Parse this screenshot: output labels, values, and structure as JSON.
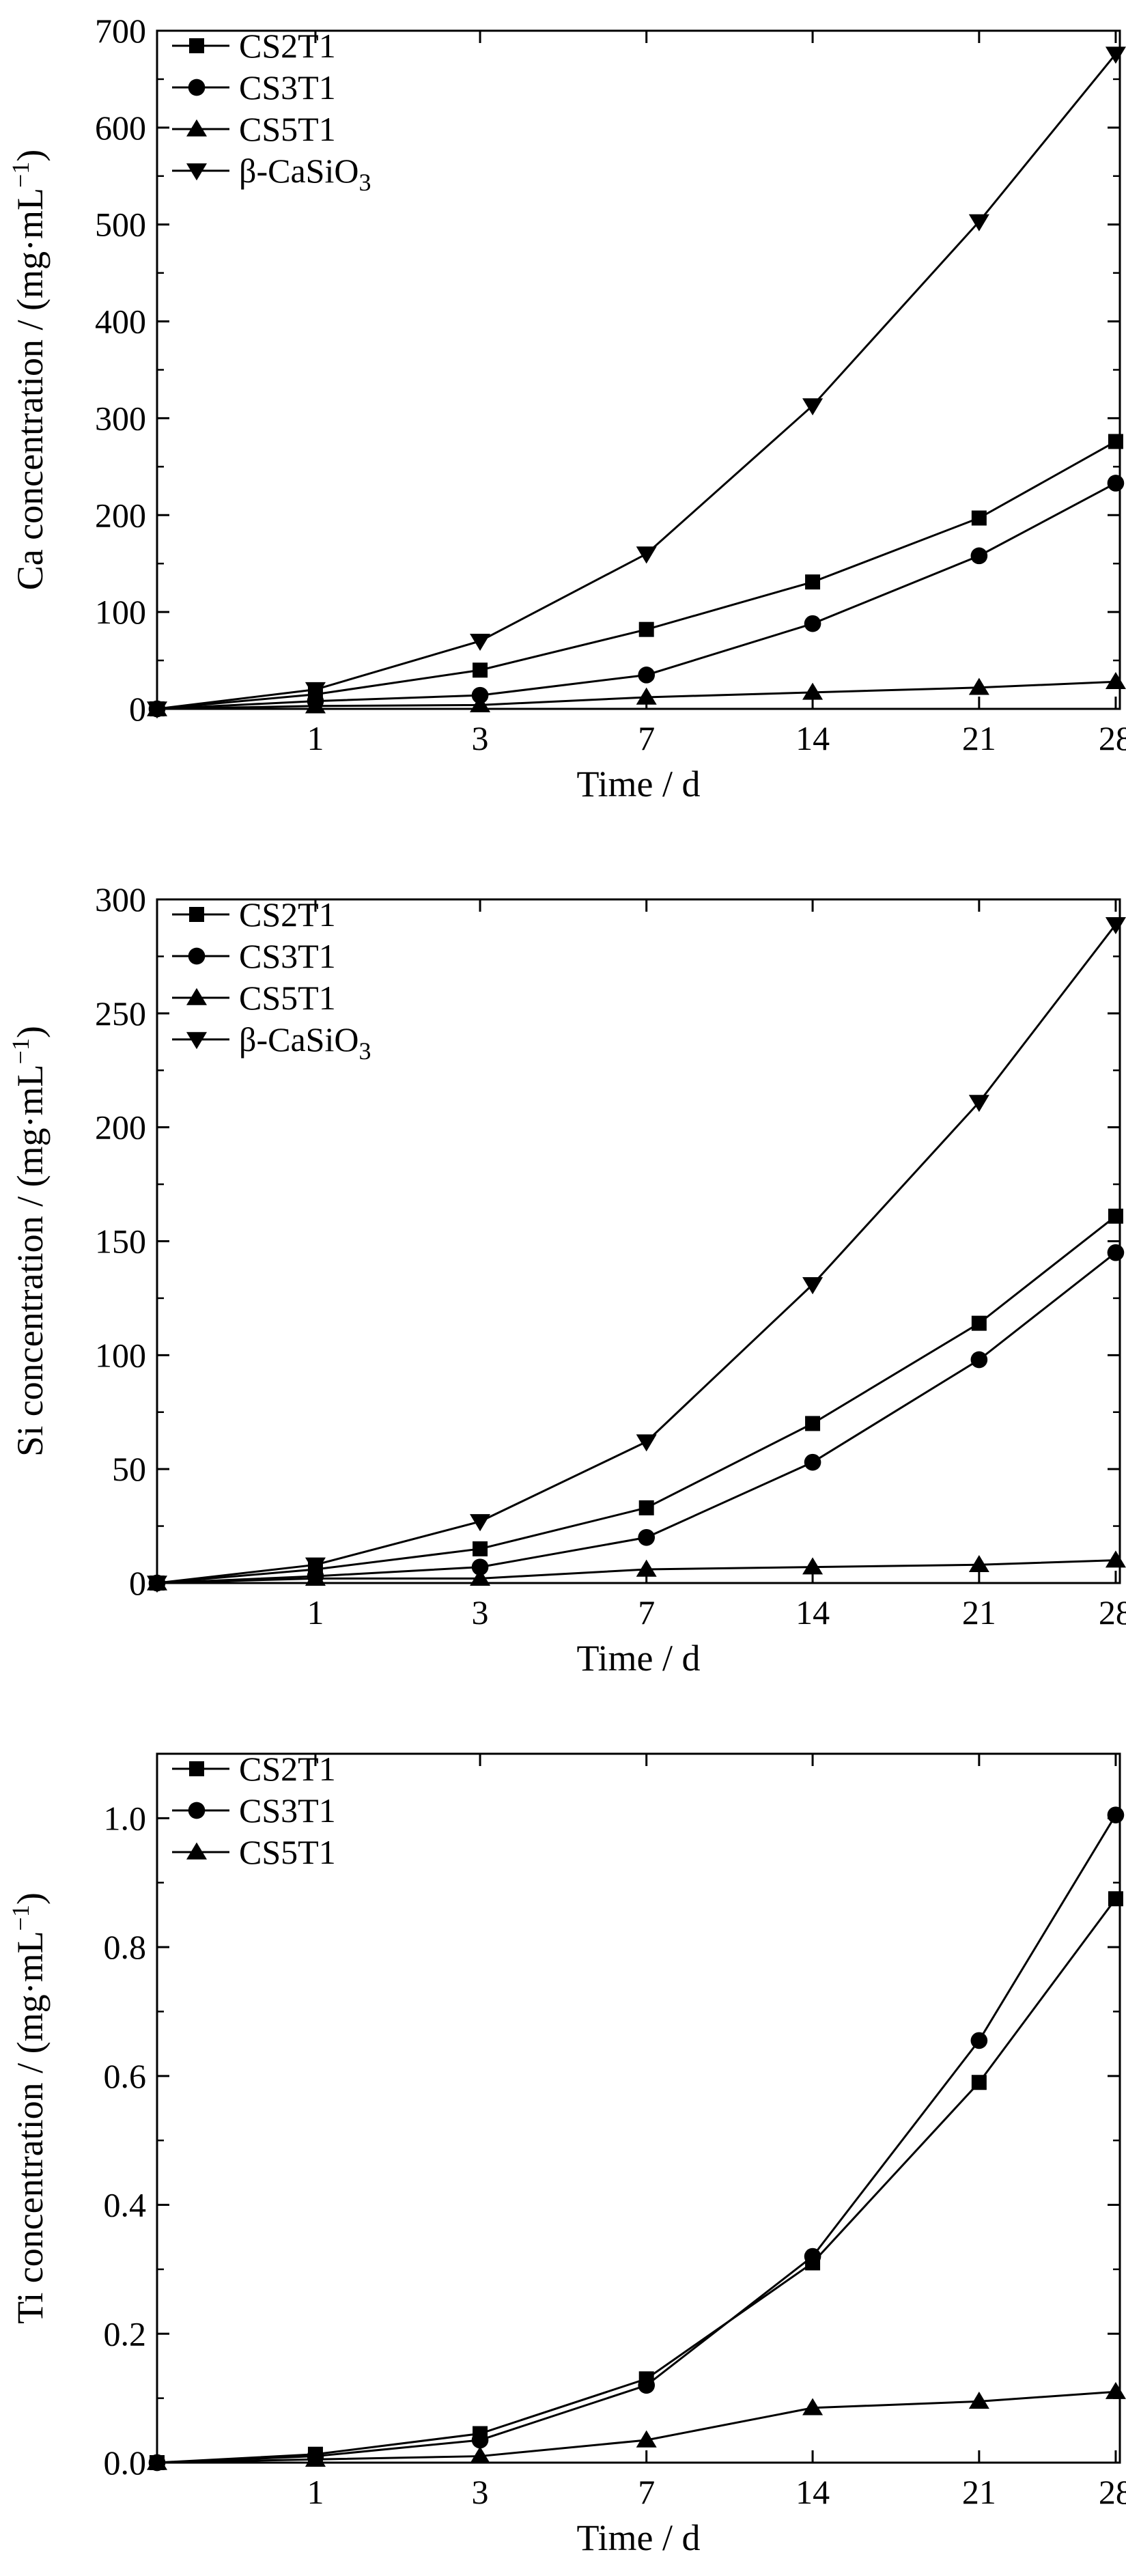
{
  "chart_data": [
    {
      "type": "line",
      "ylabel": "Ca concentration / (mg·mL⁻¹)",
      "xlabel": "Time / d",
      "categories": [
        "0",
        "1",
        "3",
        "7",
        "14",
        "21",
        "28"
      ],
      "x_tick_labels": [
        "1",
        "3",
        "7",
        "14",
        "21",
        "28"
      ],
      "ylim": [
        0,
        700
      ],
      "y_ticks": [
        0,
        100,
        200,
        300,
        400,
        500,
        600,
        700
      ],
      "y_tick_labels": [
        "0",
        "100",
        "200",
        "300",
        "400",
        "500",
        "600",
        "700"
      ],
      "legend_position": "top-left",
      "grid": false,
      "series": [
        {
          "name": "CS2T1",
          "marker": "square",
          "values": [
            0,
            15,
            40,
            82,
            131,
            197,
            276
          ]
        },
        {
          "name": "CS3T1",
          "marker": "circle",
          "values": [
            0,
            8,
            14,
            35,
            88,
            158,
            233
          ]
        },
        {
          "name": "CS5T1",
          "marker": "triangle-up",
          "values": [
            0,
            3,
            4,
            12,
            17,
            22,
            28
          ]
        },
        {
          "name": "β-CaSiO₃",
          "marker": "triangle-down",
          "values": [
            0,
            20,
            70,
            160,
            313,
            503,
            676
          ]
        }
      ]
    },
    {
      "type": "line",
      "ylabel": "Si concentration / (mg·mL⁻¹)",
      "xlabel": "Time / d",
      "categories": [
        "0",
        "1",
        "3",
        "7",
        "14",
        "21",
        "28"
      ],
      "x_tick_labels": [
        "1",
        "3",
        "7",
        "14",
        "21",
        "28"
      ],
      "ylim": [
        0,
        300
      ],
      "y_ticks": [
        0,
        50,
        100,
        150,
        200,
        250,
        300
      ],
      "y_tick_labels": [
        "0",
        "50",
        "100",
        "150",
        "200",
        "250",
        "300"
      ],
      "legend_position": "top-left",
      "grid": false,
      "series": [
        {
          "name": "CS2T1",
          "marker": "square",
          "values": [
            0,
            6,
            15,
            33,
            70,
            114,
            161
          ]
        },
        {
          "name": "CS3T1",
          "marker": "circle",
          "values": [
            0,
            3,
            7,
            20,
            53,
            98,
            145
          ]
        },
        {
          "name": "CS5T1",
          "marker": "triangle-up",
          "values": [
            0,
            2,
            2,
            6,
            7,
            8,
            10
          ]
        },
        {
          "name": "β-CaSiO₃",
          "marker": "triangle-down",
          "values": [
            0,
            8,
            27,
            62,
            131,
            211,
            289
          ]
        }
      ]
    },
    {
      "type": "line",
      "ylabel": "Ti concentration / (mg·mL⁻¹)",
      "xlabel": "Time / d",
      "categories": [
        "0",
        "1",
        "3",
        "7",
        "14",
        "21",
        "28"
      ],
      "x_tick_labels": [
        "1",
        "3",
        "7",
        "14",
        "21",
        "28"
      ],
      "ylim": [
        0,
        1.1
      ],
      "y_ticks": [
        0,
        0.2,
        0.4,
        0.6,
        0.8,
        1.0
      ],
      "y_tick_labels": [
        "0.0",
        "0.2",
        "0.4",
        "0.6",
        "0.8",
        "1.0"
      ],
      "legend_position": "top-left",
      "grid": false,
      "series": [
        {
          "name": "CS2T1",
          "marker": "square",
          "values": [
            0,
            0.013,
            0.045,
            0.13,
            0.31,
            0.59,
            0.875
          ]
        },
        {
          "name": "CS3T1",
          "marker": "circle",
          "values": [
            0,
            0.01,
            0.035,
            0.12,
            0.32,
            0.655,
            1.005
          ]
        },
        {
          "name": "CS5T1",
          "marker": "triangle-up",
          "values": [
            0,
            0.005,
            0.01,
            0.035,
            0.085,
            0.095,
            0.11
          ]
        }
      ]
    }
  ]
}
